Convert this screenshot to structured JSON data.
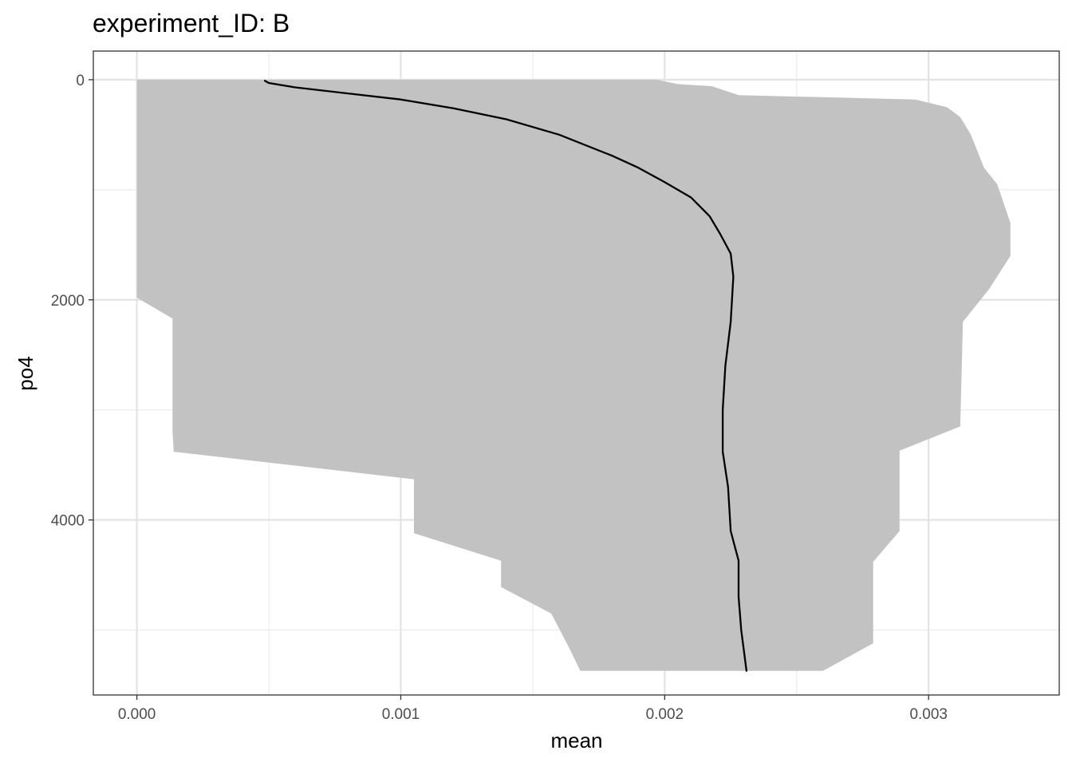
{
  "chart_data": {
    "type": "area",
    "title": "experiment_ID: B",
    "xlabel": "mean",
    "ylabel": "po4",
    "xlim": [
      -0.000165,
      0.003495
    ],
    "ylim": [
      5590,
      -260
    ],
    "y_reversed": true,
    "grid": true,
    "x_ticks": [
      {
        "value": 0.0,
        "label": "0.000"
      },
      {
        "value": 0.001,
        "label": "0.001"
      },
      {
        "value": 0.002,
        "label": "0.002"
      },
      {
        "value": 0.003,
        "label": "0.003"
      }
    ],
    "y_ticks": [
      {
        "value": 0,
        "label": "0"
      },
      {
        "value": 2000,
        "label": "2000"
      },
      {
        "value": 4000,
        "label": "4000"
      }
    ],
    "x_minor": [
      0.0005,
      0.0015,
      0.0025
    ],
    "y_minor": [
      1000,
      3000,
      5000
    ],
    "ribbon": {
      "color": "#c2c2c2",
      "lower": [
        [
          0.0,
          0
        ],
        [
          0.0,
          1980
        ],
        [
          0.000135,
          2170
        ],
        [
          0.000135,
          3200
        ],
        [
          0.00014,
          3380
        ],
        [
          0.00105,
          3630
        ],
        [
          0.00105,
          4120
        ],
        [
          0.00138,
          4370
        ],
        [
          0.00138,
          4610
        ],
        [
          0.00157,
          4850
        ],
        [
          0.00164,
          5170
        ],
        [
          0.00168,
          5370
        ]
      ],
      "upper": [
        [
          0.00197,
          0
        ],
        [
          0.00205,
          40
        ],
        [
          0.00218,
          60
        ],
        [
          0.00228,
          140
        ],
        [
          0.00295,
          180
        ],
        [
          0.00307,
          250
        ],
        [
          0.00312,
          340
        ],
        [
          0.00316,
          500
        ],
        [
          0.00321,
          800
        ],
        [
          0.00326,
          950
        ],
        [
          0.00331,
          1300
        ],
        [
          0.00331,
          1600
        ],
        [
          0.00323,
          1900
        ],
        [
          0.00313,
          2200
        ],
        [
          0.00312,
          3150
        ],
        [
          0.00289,
          3370
        ],
        [
          0.00289,
          4100
        ],
        [
          0.00279,
          4380
        ],
        [
          0.00279,
          5120
        ],
        [
          0.0026,
          5370
        ]
      ]
    },
    "series": [
      {
        "color": "#000000",
        "points": [
          [
            0.000485,
            10
          ],
          [
            0.0005,
            30
          ],
          [
            0.0006,
            70
          ],
          [
            0.0008,
            125
          ],
          [
            0.001,
            180
          ],
          [
            0.0012,
            260
          ],
          [
            0.0014,
            360
          ],
          [
            0.0016,
            500
          ],
          [
            0.0018,
            690
          ],
          [
            0.0019,
            800
          ],
          [
            0.002,
            930
          ],
          [
            0.0021,
            1070
          ],
          [
            0.00217,
            1240
          ],
          [
            0.00221,
            1400
          ],
          [
            0.00225,
            1580
          ],
          [
            0.00226,
            1790
          ],
          [
            0.00225,
            2200
          ],
          [
            0.00223,
            2600
          ],
          [
            0.00222,
            3000
          ],
          [
            0.00222,
            3380
          ],
          [
            0.00224,
            3700
          ],
          [
            0.00225,
            4100
          ],
          [
            0.00228,
            4370
          ],
          [
            0.00228,
            4700
          ],
          [
            0.00229,
            5000
          ],
          [
            0.00231,
            5370
          ]
        ]
      }
    ]
  }
}
